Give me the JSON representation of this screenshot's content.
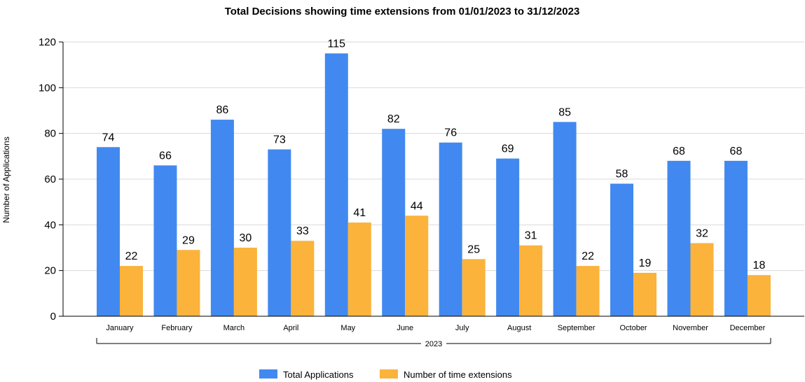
{
  "chart_data": {
    "type": "bar",
    "title": "Total Decisions showing time extensions from 01/01/2023 to 31/12/2023",
    "ylabel": "Number of Applications",
    "xlabel": "",
    "group_label": "2023",
    "categories": [
      "January",
      "February",
      "March",
      "April",
      "May",
      "June",
      "July",
      "August",
      "September",
      "October",
      "November",
      "December"
    ],
    "series": [
      {
        "name": "Total Applications",
        "color": "#4189F0",
        "values": [
          74,
          66,
          86,
          73,
          115,
          82,
          76,
          69,
          85,
          58,
          68,
          68
        ]
      },
      {
        "name": "Number of time extensions",
        "color": "#FBB33C",
        "values": [
          22,
          29,
          30,
          33,
          41,
          44,
          25,
          31,
          22,
          19,
          32,
          18
        ]
      }
    ],
    "ylim": [
      0,
      120
    ],
    "yticks": [
      0,
      20,
      40,
      60,
      80,
      100,
      120
    ],
    "grid": true,
    "legend_position": "bottom"
  }
}
